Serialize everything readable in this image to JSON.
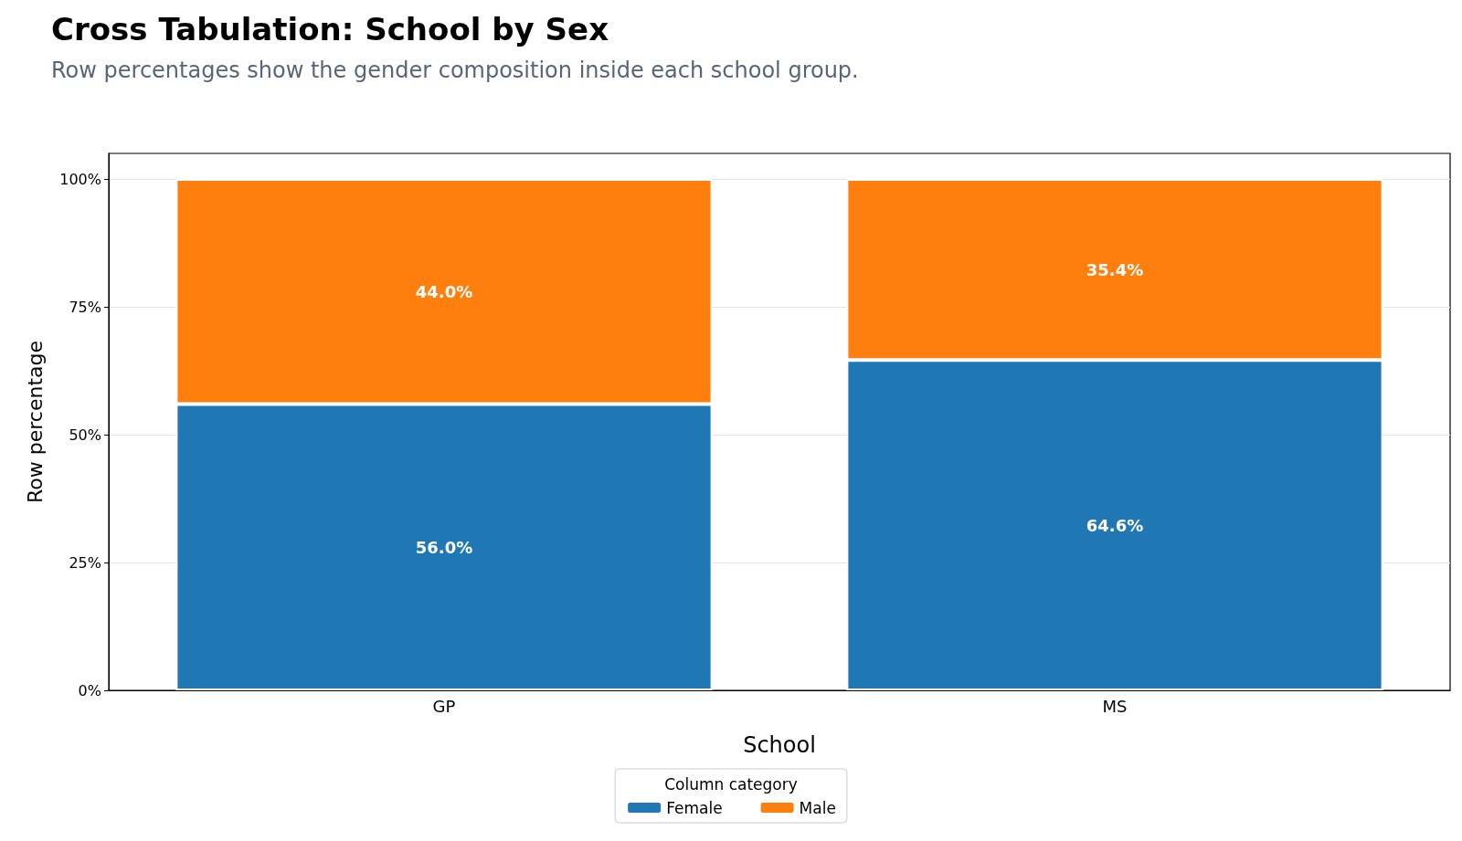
{
  "chart_data": {
    "type": "bar",
    "title": "Cross Tabulation: School by Sex",
    "subtitle": "Row percentages show the gender composition inside each school group.",
    "xlabel": "School",
    "ylabel": "Row percentage",
    "legend_title": "Column category",
    "categories": [
      "GP",
      "MS"
    ],
    "series": [
      {
        "name": "Female",
        "color": "#1f77b4",
        "values": [
          56.0,
          64.6
        ],
        "value_labels": [
          "56.0%",
          "64.6%"
        ]
      },
      {
        "name": "Male",
        "color": "#ff7f0e",
        "values": [
          44.0,
          35.4
        ],
        "value_labels": [
          "44.0%",
          "35.4%"
        ]
      }
    ],
    "stacked": true,
    "ylim": [
      0,
      105
    ],
    "yticks": [
      {
        "value": 0,
        "label": "0%"
      },
      {
        "value": 25,
        "label": "25%"
      },
      {
        "value": 50,
        "label": "50%"
      },
      {
        "value": 75,
        "label": "75%"
      },
      {
        "value": 100,
        "label": "100%"
      }
    ],
    "grid": "y",
    "legend": "bottom"
  }
}
